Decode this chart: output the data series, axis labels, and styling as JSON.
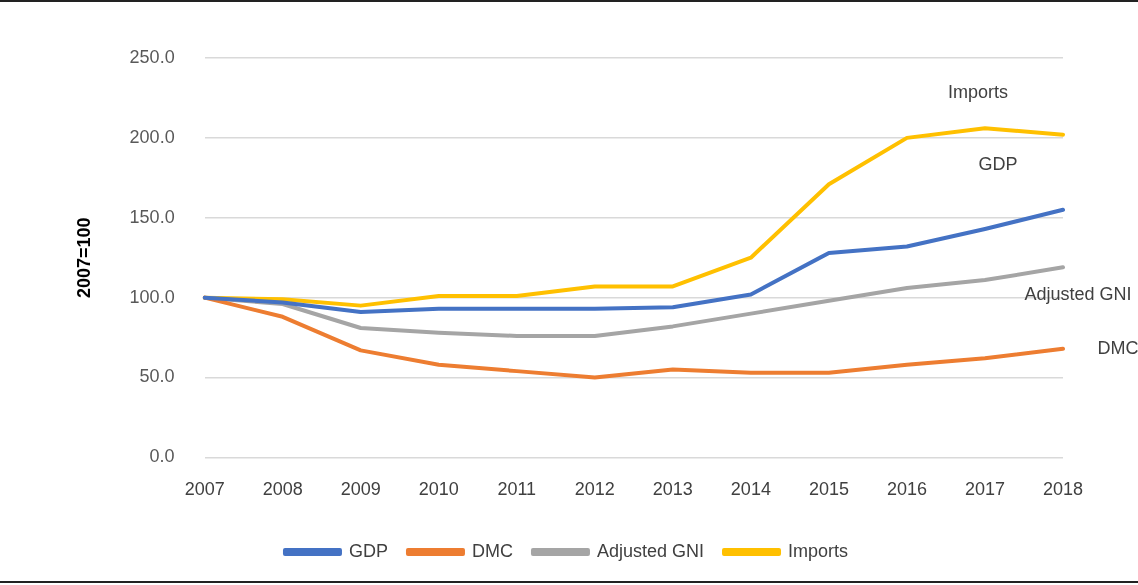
{
  "chart_data": {
    "type": "line",
    "ylabel": "2007=100",
    "categories": [
      "2007",
      "2008",
      "2009",
      "2010",
      "2011",
      "2012",
      "2013",
      "2014",
      "2015",
      "2016",
      "2017",
      "2018"
    ],
    "series": [
      {
        "name": "GDP",
        "color": "#4472c4",
        "values": [
          100,
          97,
          91,
          93,
          93,
          93,
          94,
          102,
          128,
          132,
          143,
          155
        ]
      },
      {
        "name": "DMC",
        "color": "#ed7d31",
        "values": [
          100,
          88,
          67,
          58,
          54,
          50,
          55,
          53,
          53,
          58,
          62,
          68
        ]
      },
      {
        "name": "Adjusted GNI",
        "color": "#a5a5a5",
        "values": [
          100,
          96,
          81,
          78,
          76,
          76,
          82,
          90,
          98,
          106,
          111,
          119
        ]
      },
      {
        "name": "Imports",
        "color": "#ffc000",
        "values": [
          100,
          99,
          95,
          101,
          101,
          107,
          107,
          125,
          171,
          200,
          206,
          202
        ]
      }
    ],
    "ylim": [
      0,
      250
    ],
    "yticks": [
      {
        "value": 0,
        "label": "0.0"
      },
      {
        "value": 50,
        "label": "50.0"
      },
      {
        "value": 100,
        "label": "100.0"
      },
      {
        "value": 150,
        "label": "150.0"
      },
      {
        "value": 200,
        "label": "200.0"
      },
      {
        "value": 250,
        "label": "250.0"
      }
    ],
    "grid": "y",
    "legend": "bottom",
    "marker": "none",
    "line_style": "solid"
  }
}
